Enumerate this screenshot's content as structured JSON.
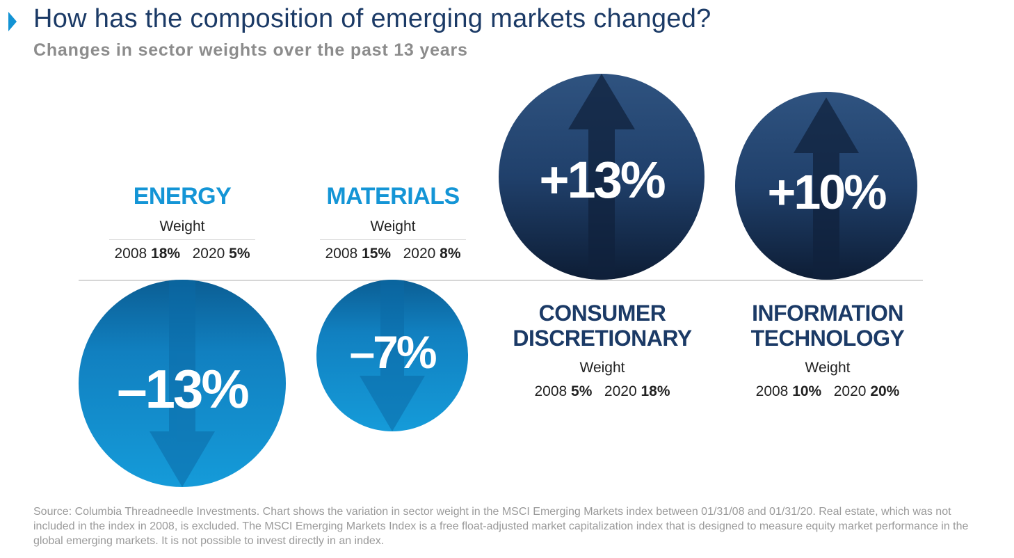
{
  "header": {
    "title": "How has the composition of emerging markets changed?",
    "subtitle": "Changes in sector weights over the past 13 years"
  },
  "chart_data": {
    "type": "bubble",
    "title": "How has the composition of emerging markets changed?",
    "subtitle": "Changes in sector weights over the past 13 years",
    "weight_label": "Weight",
    "years": [
      "2008",
      "2020"
    ],
    "series": [
      {
        "name": "ENERGY",
        "change_label": "–13%",
        "change": -13,
        "weight_2008_label": "18%",
        "weight_2020_label": "5%",
        "weight_2008": 18,
        "weight_2020": 5,
        "direction": "down",
        "color": "#1495d6"
      },
      {
        "name": "MATERIALS",
        "change_label": "–7%",
        "change": -7,
        "weight_2008_label": "15%",
        "weight_2020_label": "8%",
        "weight_2008": 15,
        "weight_2020": 8,
        "direction": "down",
        "color": "#1495d6"
      },
      {
        "name_line1": "CONSUMER",
        "name_line2": "DISCRETIONARY",
        "change_label": "+13%",
        "change": 13,
        "weight_2008_label": "5%",
        "weight_2020_label": "18%",
        "weight_2008": 5,
        "weight_2020": 18,
        "direction": "up",
        "color": "#1b3a66"
      },
      {
        "name_line1": "INFORMATION",
        "name_line2": "TECHNOLOGY",
        "change_label": "+10%",
        "change": 10,
        "weight_2008_label": "10%",
        "weight_2020_label": "20%",
        "weight_2008": 10,
        "weight_2020": 20,
        "direction": "up",
        "color": "#1b3a66"
      }
    ]
  },
  "source_note": "Source: Columbia Threadneedle Investments. Chart shows the variation in sector weight in the MSCI Emerging Markets index between 01/31/08 and 01/31/20. Real estate, which was not included in the index in 2008, is excluded. The MSCI Emerging Markets Index is a free float-adjusted market capitalization index that is designed to measure equity market performance in the global emerging markets. It is not possible to invest directly in an index."
}
